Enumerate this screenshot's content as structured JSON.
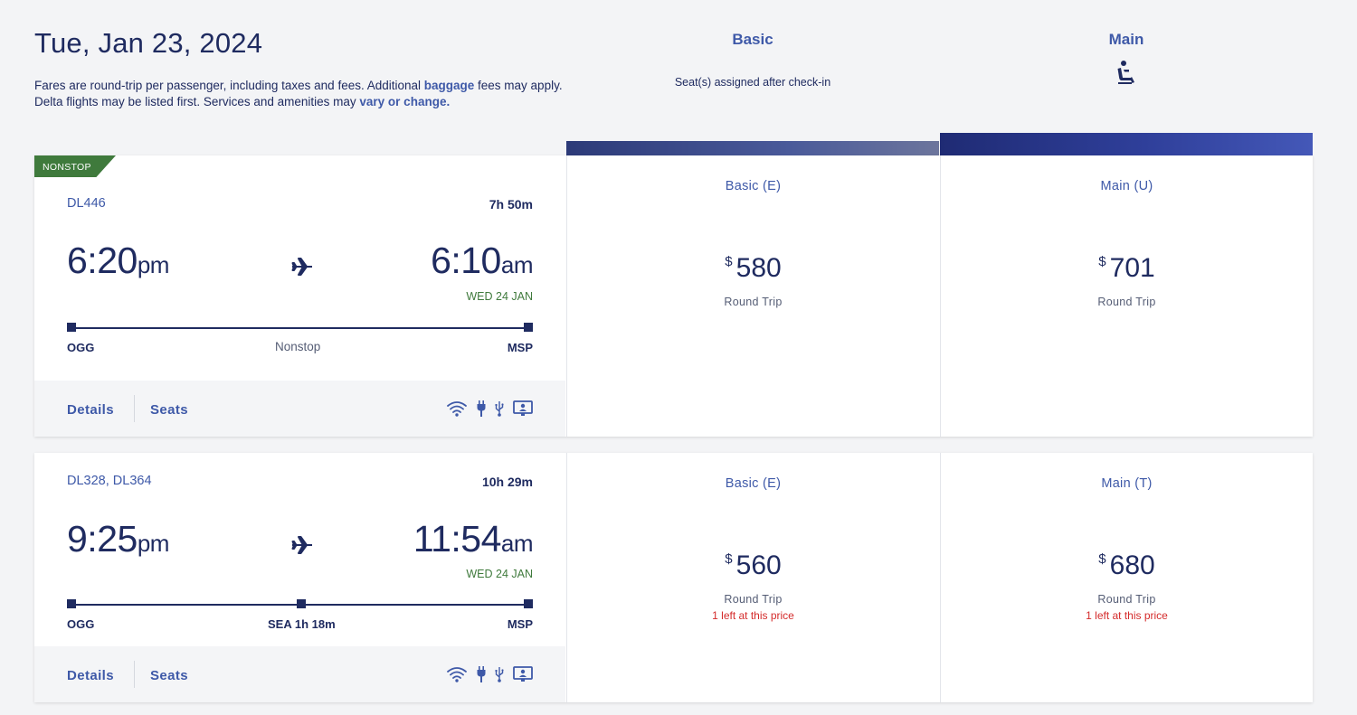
{
  "header": {
    "date": "Tue, Jan 23, 2024",
    "line1_pre": "Fares are round-trip per passenger, including taxes and fees. Additional ",
    "line1_link": "baggage",
    "line1_post": " fees may apply.",
    "line2_pre": "Delta flights may be listed first. Services and amenities may ",
    "line2_link": "vary or change."
  },
  "columns": {
    "basic": {
      "name": "Basic",
      "note": "Seat(s) assigned after check-in"
    },
    "main": {
      "name": "Main",
      "icon": "seat-icon"
    }
  },
  "colors": {
    "navy": "#1f2b60",
    "link": "#3e59a8",
    "green": "#3f7a3c",
    "red": "#d42b2b"
  },
  "flights": [
    {
      "badge": "NONSTOP",
      "flight_numbers": "DL446",
      "duration": "7h 50m",
      "depart_time": "6:20",
      "depart_ampm": "pm",
      "arrive_time": "6:10",
      "arrive_ampm": "am",
      "arrive_date": "WED 24 JAN",
      "origin": "OGG",
      "stop": "Nonstop",
      "destination": "MSP",
      "details_label": "Details",
      "seats_label": "Seats",
      "basic": {
        "class": "Basic (E)",
        "currency": "$",
        "price": "580",
        "trip": "Round Trip"
      },
      "main": {
        "class": "Main (U)",
        "currency": "$",
        "price": "701",
        "trip": "Round Trip"
      }
    },
    {
      "flight_numbers": "DL328, DL364",
      "duration": "10h 29m",
      "depart_time": "9:25",
      "depart_ampm": "pm",
      "arrive_time": "11:54",
      "arrive_ampm": "am",
      "arrive_date": "WED 24 JAN",
      "origin": "OGG",
      "stop": "SEA 1h 18m",
      "destination": "MSP",
      "details_label": "Details",
      "seats_label": "Seats",
      "basic": {
        "class": "Basic (E)",
        "currency": "$",
        "price": "560",
        "trip": "Round Trip",
        "availability": "1 left at this price"
      },
      "main": {
        "class": "Main (T)",
        "currency": "$",
        "price": "680",
        "trip": "Round Trip",
        "availability": "1 left at this price"
      }
    }
  ],
  "amenity_icons": [
    "wifi-icon",
    "power-icon",
    "usb-icon",
    "entertainment-icon"
  ]
}
